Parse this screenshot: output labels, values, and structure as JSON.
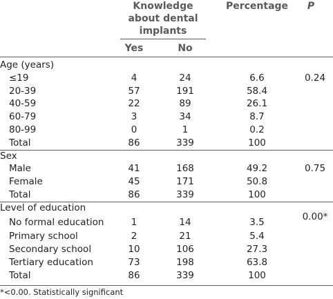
{
  "header": {
    "knowledge": "Knowledge about dental implants",
    "percentage": "Percentage",
    "p": "P",
    "yes": "Yes",
    "no": "No"
  },
  "sections": [
    {
      "title": "Age (years)",
      "rows": [
        {
          "label": "≤19",
          "yes": "4",
          "no": "24",
          "pct": "6.6",
          "p": "0.24"
        },
        {
          "label": "20-39",
          "yes": "57",
          "no": "191",
          "pct": "58.4",
          "p": ""
        },
        {
          "label": "40-59",
          "yes": "22",
          "no": "89",
          "pct": "26.1",
          "p": ""
        },
        {
          "label": "60-79",
          "yes": "3",
          "no": "34",
          "pct": "8.7",
          "p": ""
        },
        {
          "label": "80-99",
          "yes": "0",
          "no": "1",
          "pct": "0.2",
          "p": ""
        },
        {
          "label": "Total",
          "yes": "86",
          "no": "339",
          "pct": "100",
          "p": ""
        }
      ]
    },
    {
      "title": "Sex",
      "rows": [
        {
          "label": "Male",
          "yes": "41",
          "no": "168",
          "pct": "49.2",
          "p": "0.75"
        },
        {
          "label": "Female",
          "yes": "45",
          "no": "171",
          "pct": "50.8",
          "p": ""
        },
        {
          "label": "Total",
          "yes": "86",
          "no": "339",
          "pct": "100",
          "p": ""
        }
      ]
    },
    {
      "title": "Level of education",
      "rows": [
        {
          "label": "No formal education",
          "yes": "1",
          "no": "14",
          "pct": "3.5",
          "p": "0.00*"
        },
        {
          "label": "Primary school",
          "yes": "2",
          "no": "21",
          "pct": "5.4",
          "p": ""
        },
        {
          "label": "Secondary school",
          "yes": "10",
          "no": "106",
          "pct": "27.3",
          "p": ""
        },
        {
          "label": "Tertiary education",
          "yes": "73",
          "no": "198",
          "pct": "63.8",
          "p": ""
        },
        {
          "label": "Total",
          "yes": "86",
          "no": "339",
          "pct": "100",
          "p": ""
        }
      ]
    }
  ],
  "footnote": "*<0.00. Statistically significant"
}
